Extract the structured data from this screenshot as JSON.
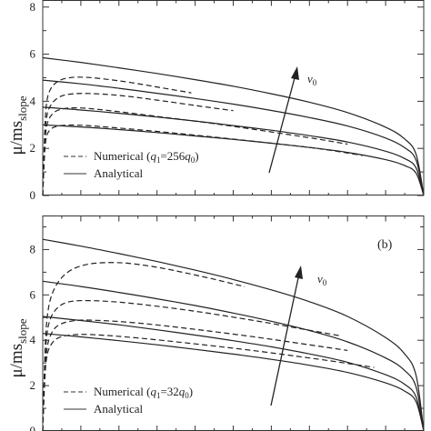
{
  "chart_data": [
    {
      "id": "a",
      "type": "line",
      "panel_label": "",
      "ylabel": "μ/ms",
      "ylabel_sub": "slope",
      "ylim": [
        0,
        8.3
      ],
      "xlim": [
        0,
        1
      ],
      "yticks": [
        "0",
        "2",
        "4",
        "6",
        "8"
      ],
      "ytick_values": [
        0,
        2,
        4,
        6,
        8
      ],
      "x_tick_labels_visible": false,
      "grid": false,
      "legend": {
        "position": "bottom-left",
        "entries": [
          {
            "style": "dashed",
            "label": "Numerical (",
            "q_main": "q",
            "q_sub": "1",
            "middle": "=256",
            "q2_main": "q",
            "q2_sub": "0",
            "close": ")"
          },
          {
            "style": "solid",
            "label": "Analytical"
          }
        ]
      },
      "annotation": {
        "main": "v",
        "sub": "0"
      },
      "series": [
        {
          "style": "solid",
          "x": [
            0,
            0.1,
            0.2,
            0.3,
            0.4,
            0.5,
            0.6,
            0.7,
            0.8,
            0.9,
            0.95,
            0.98,
            1.0
          ],
          "y": [
            5.85,
            5.65,
            5.42,
            5.18,
            4.92,
            4.64,
            4.32,
            3.96,
            3.52,
            2.9,
            2.4,
            1.75,
            0
          ]
        },
        {
          "style": "solid",
          "x": [
            0,
            0.1,
            0.2,
            0.3,
            0.4,
            0.5,
            0.6,
            0.7,
            0.8,
            0.9,
            0.95,
            0.98,
            1.0
          ],
          "y": [
            4.9,
            4.74,
            4.55,
            4.34,
            4.12,
            3.88,
            3.61,
            3.31,
            2.95,
            2.44,
            2.03,
            1.5,
            0
          ]
        },
        {
          "style": "solid",
          "x": [
            0,
            0.1,
            0.2,
            0.3,
            0.4,
            0.5,
            0.6,
            0.7,
            0.8,
            0.9,
            0.95,
            0.98,
            1.0
          ],
          "y": [
            3.75,
            3.63,
            3.49,
            3.33,
            3.16,
            2.97,
            2.77,
            2.54,
            2.27,
            1.88,
            1.57,
            1.17,
            0
          ]
        },
        {
          "style": "solid",
          "x": [
            0,
            0.1,
            0.2,
            0.3,
            0.4,
            0.5,
            0.6,
            0.7,
            0.8,
            0.9,
            0.95,
            0.98,
            1.0
          ],
          "y": [
            3.0,
            2.91,
            2.8,
            2.67,
            2.53,
            2.38,
            2.22,
            2.04,
            1.83,
            1.52,
            1.27,
            0.95,
            0
          ]
        },
        {
          "style": "dashed",
          "x": [
            0.0,
            0.005,
            0.01,
            0.02,
            0.04,
            0.07,
            0.11,
            0.16,
            0.23,
            0.31,
            0.39
          ],
          "y": [
            0,
            2.6,
            3.9,
            4.5,
            4.85,
            5.0,
            5.02,
            4.95,
            4.8,
            4.58,
            4.36
          ]
        },
        {
          "style": "dashed",
          "x": [
            0.0,
            0.005,
            0.01,
            0.02,
            0.04,
            0.07,
            0.12,
            0.2,
            0.3,
            0.4,
            0.5
          ],
          "y": [
            0,
            2.3,
            3.3,
            3.8,
            4.15,
            4.3,
            4.33,
            4.25,
            4.05,
            3.82,
            3.6
          ]
        },
        {
          "style": "dashed",
          "x": [
            0.0,
            0.005,
            0.01,
            0.02,
            0.04,
            0.08,
            0.15,
            0.3,
            0.45,
            0.6,
            0.72,
            0.8
          ],
          "y": [
            0,
            2.0,
            2.9,
            3.35,
            3.62,
            3.72,
            3.65,
            3.36,
            3.05,
            2.7,
            2.4,
            2.18
          ]
        },
        {
          "style": "dashed",
          "x": [
            0.0,
            0.005,
            0.01,
            0.02,
            0.04,
            0.08,
            0.15,
            0.3,
            0.45,
            0.6,
            0.72,
            0.84
          ],
          "y": [
            0,
            1.8,
            2.5,
            2.8,
            2.95,
            2.99,
            2.93,
            2.72,
            2.48,
            2.22,
            2.0,
            1.7
          ]
        }
      ]
    },
    {
      "id": "b",
      "type": "line",
      "panel_label": "(b)",
      "ylabel": "μ/ms",
      "ylabel_sub": "slope",
      "ylim": [
        0,
        9.5
      ],
      "xlim": [
        0,
        1
      ],
      "yticks": [
        "0",
        "2",
        "4",
        "6",
        "8"
      ],
      "ytick_values": [
        0,
        2,
        4,
        6,
        8
      ],
      "x_tick_labels_visible": false,
      "grid": false,
      "legend": {
        "position": "bottom-left",
        "entries": [
          {
            "style": "dashed",
            "label": "Numerical (",
            "q_main": "q",
            "q_sub": "1",
            "middle": "=32",
            "q2_main": "q",
            "q2_sub": "0",
            "close": ")"
          },
          {
            "style": "solid",
            "label": "Analytical"
          }
        ]
      },
      "annotation": {
        "main": "v",
        "sub": "0"
      },
      "series": [
        {
          "style": "solid",
          "x": [
            0,
            0.1,
            0.2,
            0.3,
            0.4,
            0.5,
            0.6,
            0.7,
            0.8,
            0.9,
            0.95,
            0.98,
            1.0
          ],
          "y": [
            8.45,
            8.15,
            7.82,
            7.47,
            7.09,
            6.68,
            6.22,
            5.7,
            5.05,
            4.12,
            3.4,
            2.45,
            0
          ]
        },
        {
          "style": "solid",
          "x": [
            0,
            0.1,
            0.2,
            0.3,
            0.4,
            0.5,
            0.6,
            0.7,
            0.8,
            0.9,
            0.95,
            0.98,
            1.0
          ],
          "y": [
            6.6,
            6.37,
            6.11,
            5.83,
            5.53,
            5.2,
            4.84,
            4.43,
            3.93,
            3.22,
            2.67,
            1.94,
            0
          ]
        },
        {
          "style": "solid",
          "x": [
            0,
            0.1,
            0.2,
            0.3,
            0.4,
            0.5,
            0.6,
            0.7,
            0.8,
            0.9,
            0.95,
            0.98,
            1.0
          ],
          "y": [
            5.05,
            4.87,
            4.68,
            4.46,
            4.23,
            3.98,
            3.71,
            3.4,
            3.03,
            2.48,
            2.06,
            1.5,
            0
          ]
        },
        {
          "style": "solid",
          "x": [
            0,
            0.1,
            0.2,
            0.3,
            0.4,
            0.5,
            0.6,
            0.7,
            0.8,
            0.9,
            0.95,
            0.98,
            1.0
          ],
          "y": [
            4.3,
            4.15,
            3.98,
            3.8,
            3.6,
            3.39,
            3.16,
            2.9,
            2.58,
            2.12,
            1.76,
            1.29,
            0
          ]
        },
        {
          "style": "dashed",
          "x": [
            0.0,
            0.005,
            0.01,
            0.02,
            0.04,
            0.07,
            0.11,
            0.16,
            0.22,
            0.3,
            0.38,
            0.46,
            0.53
          ],
          "y": [
            0,
            3.0,
            4.7,
            5.8,
            6.55,
            7.05,
            7.32,
            7.42,
            7.4,
            7.22,
            6.95,
            6.65,
            6.36
          ]
        },
        {
          "style": "dashed",
          "x": [
            0.0,
            0.005,
            0.01,
            0.02,
            0.04,
            0.07,
            0.12,
            0.2,
            0.3,
            0.4,
            0.5,
            0.6,
            0.7,
            0.78
          ],
          "y": [
            0,
            2.7,
            4.1,
            4.95,
            5.45,
            5.7,
            5.75,
            5.68,
            5.5,
            5.28,
            5.02,
            4.74,
            4.44,
            4.2
          ]
        },
        {
          "style": "dashed",
          "x": [
            0.0,
            0.005,
            0.01,
            0.02,
            0.04,
            0.08,
            0.14,
            0.25,
            0.4,
            0.55,
            0.7,
            0.8
          ],
          "y": [
            0,
            2.4,
            3.5,
            4.2,
            4.65,
            4.86,
            4.88,
            4.76,
            4.48,
            4.16,
            3.8,
            3.55
          ]
        },
        {
          "style": "dashed",
          "x": [
            0.0,
            0.005,
            0.01,
            0.02,
            0.04,
            0.08,
            0.14,
            0.25,
            0.4,
            0.55,
            0.7,
            0.8,
            0.87
          ],
          "y": [
            0,
            2.1,
            3.2,
            3.75,
            4.1,
            4.24,
            4.24,
            4.1,
            3.84,
            3.55,
            3.22,
            2.98,
            2.8
          ]
        }
      ]
    }
  ]
}
